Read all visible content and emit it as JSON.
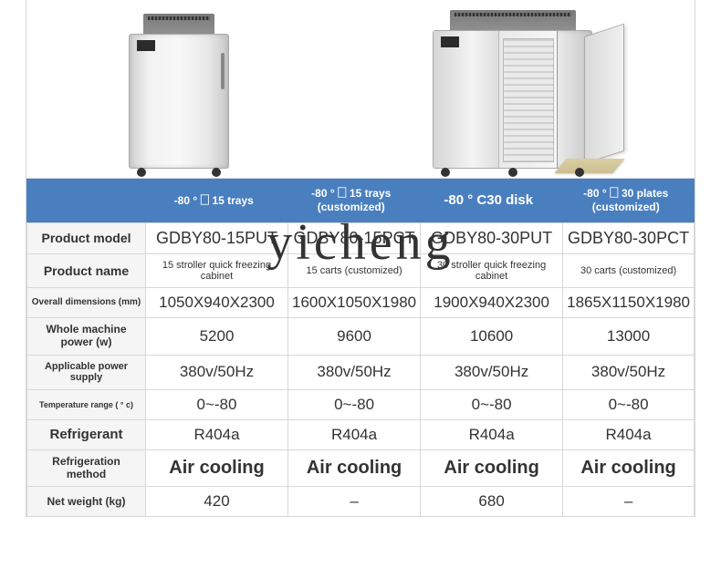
{
  "watermark": "yicheng",
  "headers": {
    "c1": "-80 ° 🗌 15 trays",
    "c2": "-80 ° 🗌 15 trays (customized)",
    "c3": "-80 ° C30 disk",
    "c4": "-80 ° 🗌 30 plates (customized)"
  },
  "rows": {
    "model": {
      "label": "Product model",
      "c1": "GDBY80-15PUT",
      "c2": "GDBY80-15PCT",
      "c3": "GDBY80-30PUT",
      "c4": "GDBY80-30PCT"
    },
    "name": {
      "label": "Product name",
      "c1": "15 stroller quick freezing cabinet",
      "c2": "15 carts (customized)",
      "c3": "30 stroller quick freezing cabinet",
      "c4": "30 carts (customized)"
    },
    "dim": {
      "label": "Overall dimensions (mm)",
      "c1": "1050X940X2300",
      "c2": "1600X1050X1980",
      "c3": "1900X940X2300",
      "c4": "1865X1150X1980"
    },
    "power": {
      "label": "Whole machine power (w)",
      "c1": "5200",
      "c2": "9600",
      "c3": "10600",
      "c4": "13000"
    },
    "supply": {
      "label": "Applicable power supply",
      "c1": "380v/50Hz",
      "c2": "380v/50Hz",
      "c3": "380v/50Hz",
      "c4": "380v/50Hz"
    },
    "temp": {
      "label": "Temperature range ( ° c)",
      "c1": "0~-80",
      "c2": "0~-80",
      "c3": "0~-80",
      "c4": "0~-80"
    },
    "refr": {
      "label": "Refrigerant",
      "c1": "R404a",
      "c2": "R404a",
      "c3": "R404a",
      "c4": "R404a"
    },
    "method": {
      "label": "Refrigeration method",
      "c1": "Air cooling",
      "c2": "Air cooling",
      "c3": "Air cooling",
      "c4": "Air cooling"
    },
    "weight": {
      "label": "Net weight (kg)",
      "c1": "420",
      "c2": "–",
      "c3": "680",
      "c4": "–"
    }
  },
  "colors": {
    "header_bg": "#4a7fbf",
    "header_text": "#ffffff",
    "border": "#d8d8d8",
    "label_bg": "#f5f5f5",
    "cell_bg": "#ffffff",
    "text": "#333333"
  }
}
